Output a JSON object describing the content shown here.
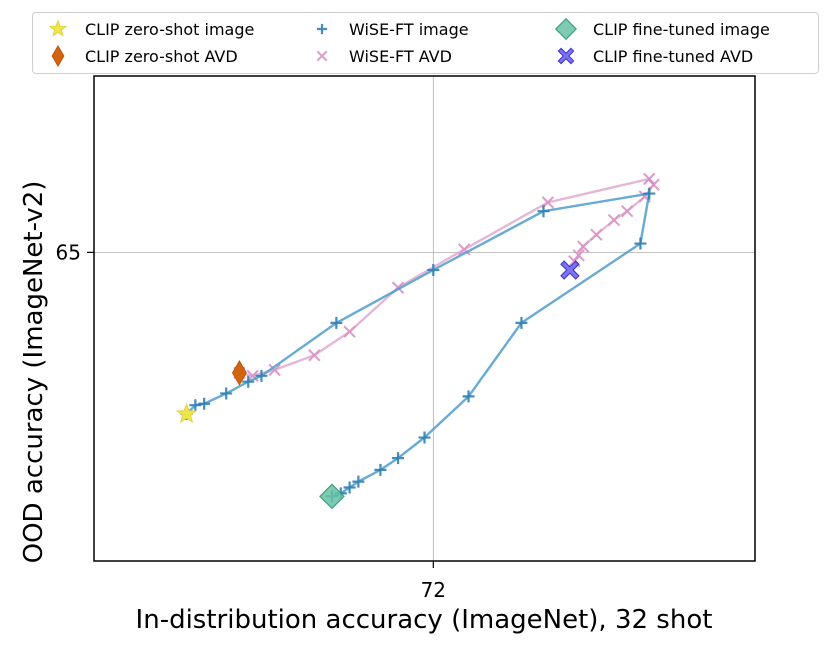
{
  "chart_data": {
    "type": "scatter",
    "xlabel": "In-distribution accuracy (ImageNet), 32 shot",
    "ylabel": "OOD accuracy (ImageNet-v2)",
    "x_ticks": [
      72
    ],
    "y_ticks": [
      65
    ],
    "x_tick_labels": [
      "72"
    ],
    "y_tick_labels": [
      "65"
    ],
    "xlim": [
      64.3,
      79.3
    ],
    "ylim": [
      54.5,
      71.0
    ],
    "grid": true,
    "legend_position": "top",
    "legend_columns": 3,
    "series": [
      {
        "name": "CLIP zero-shot image",
        "kind": "marker",
        "marker": "star",
        "color": "#ede54a",
        "points": [
          [
            66.4,
            59.5
          ]
        ]
      },
      {
        "name": "CLIP zero-shot AVD",
        "kind": "marker",
        "marker": "diamond",
        "color": "#d2640e",
        "points": [
          [
            67.6,
            60.9
          ]
        ]
      },
      {
        "name": "WiSE-FT image",
        "kind": "line-plus",
        "color": "#4f9ccb",
        "points": [
          [
            66.4,
            59.5
          ],
          [
            66.6,
            59.8
          ],
          [
            66.8,
            59.85
          ],
          [
            67.3,
            60.2
          ],
          [
            67.8,
            60.6
          ],
          [
            68.1,
            60.8
          ],
          [
            69.8,
            62.6
          ],
          [
            72.0,
            64.4
          ],
          [
            74.5,
            66.4
          ],
          [
            76.9,
            67.0
          ],
          [
            76.7,
            65.3
          ],
          [
            74.0,
            62.6
          ],
          [
            72.8,
            60.1
          ],
          [
            71.8,
            58.7
          ],
          [
            71.2,
            58.0
          ],
          [
            70.8,
            57.6
          ],
          [
            70.3,
            57.2
          ],
          [
            70.1,
            57.0
          ],
          [
            69.9,
            56.8
          ],
          [
            69.7,
            56.7
          ]
        ]
      },
      {
        "name": "WiSE-FT AVD",
        "kind": "line-x",
        "color": "#e0aad0",
        "points": [
          [
            67.6,
            60.9
          ],
          [
            67.9,
            60.8
          ],
          [
            68.4,
            61.0
          ],
          [
            69.3,
            61.5
          ],
          [
            70.1,
            62.3
          ],
          [
            71.2,
            63.8
          ],
          [
            72.7,
            65.1
          ],
          [
            74.6,
            66.7
          ],
          [
            76.9,
            67.5
          ],
          [
            77.0,
            67.3
          ],
          [
            76.8,
            66.9
          ],
          [
            76.4,
            66.4
          ],
          [
            76.1,
            66.1
          ],
          [
            75.7,
            65.6
          ],
          [
            75.4,
            65.2
          ],
          [
            75.3,
            64.9
          ],
          [
            75.2,
            64.7
          ]
        ]
      },
      {
        "name": "CLIP fine-tuned image",
        "kind": "marker",
        "marker": "diamond-square",
        "color": "#66c2a5",
        "points": [
          [
            69.7,
            56.7
          ]
        ]
      },
      {
        "name": "CLIP fine-tuned AVD",
        "kind": "marker",
        "marker": "x-filled",
        "color": "#5b50f0",
        "points": [
          [
            75.1,
            64.4
          ]
        ]
      }
    ]
  }
}
